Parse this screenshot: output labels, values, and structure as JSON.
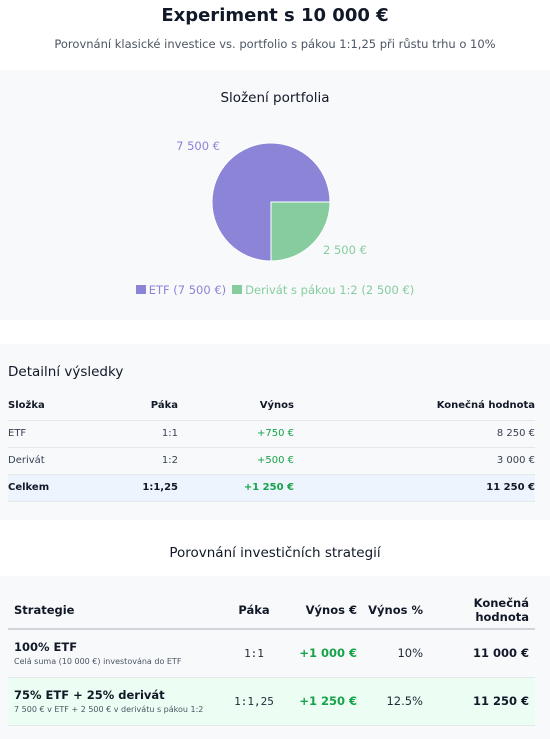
{
  "header": {
    "title": "Experiment s 10 000 €",
    "subtitle": "Porovnání klasické investice vs. portfolio s pákou 1:1,25 při růstu trhu o 10%"
  },
  "chart_section": {
    "title": "Složení portfolia"
  },
  "chart_data": {
    "type": "pie",
    "title": "Složení portfolia",
    "slices": [
      {
        "label": "ETF (7 500 €)",
        "value": 7500,
        "data_label": "7 500 €",
        "color": "#8b84d7"
      },
      {
        "label": "Derivát s pákou 1:2 (2 500 €)",
        "value": 2500,
        "data_label": "2 500 €",
        "color": "#86cc9f"
      }
    ],
    "legend_position": "bottom"
  },
  "detail": {
    "title": "Detailní výsledky",
    "headers": [
      "Složka",
      "Páka",
      "Výnos",
      "Konečná hodnota"
    ],
    "rows": [
      {
        "component": "ETF",
        "leverage": "1:1",
        "return": "+750 €",
        "final": "8 250 €"
      },
      {
        "component": "Derivát",
        "leverage": "1:2",
        "return": "+500 €",
        "final": "3 000 €"
      }
    ],
    "total": {
      "component": "Celkem",
      "leverage": "1:1,25",
      "return": "+1 250 €",
      "final": "11 250 €"
    }
  },
  "strategies": {
    "title": "Porovnání investičních strategií",
    "headers": [
      "Strategie",
      "Páka",
      "Výnos €",
      "Výnos %",
      "Konečná hodnota"
    ],
    "rows": [
      {
        "name": "100% ETF",
        "desc": "Celá suma (10 000 €) investována do ETF",
        "leverage": "1:1",
        "return_eur": "+1 000 €",
        "return_pct": "10%",
        "final": "11 000 €"
      },
      {
        "name": "75% ETF + 25% derivát",
        "desc": "7 500 € v ETF + 2 500 € v derivátu s pákou 1:2",
        "leverage": "1:1,25",
        "return_eur": "+1 250 €",
        "return_pct": "12.5%",
        "final": "11 250 €"
      }
    ]
  }
}
